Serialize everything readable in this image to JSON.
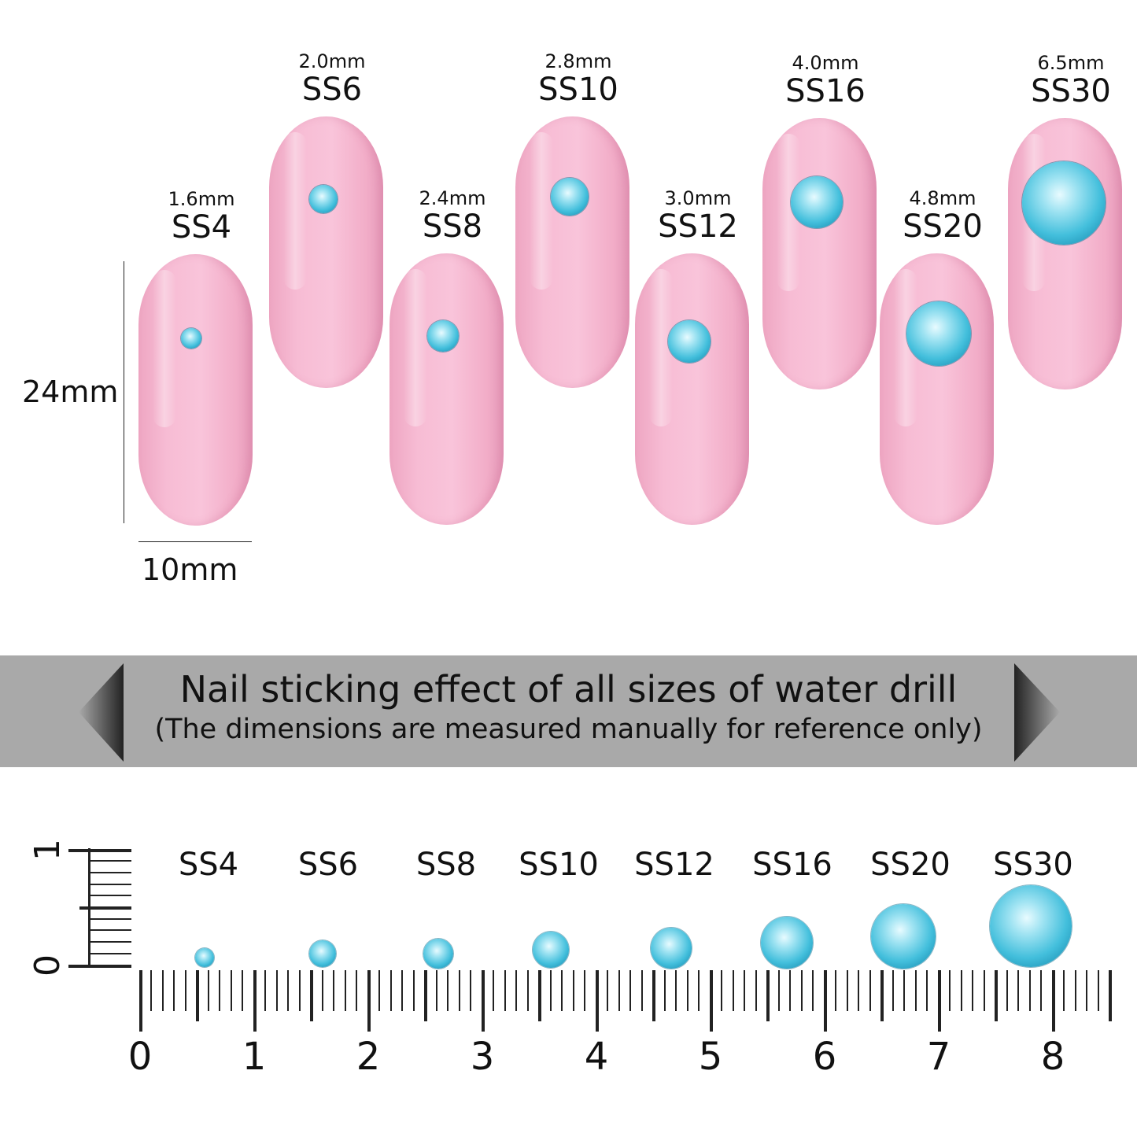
{
  "sizes": [
    {
      "name": "SS4",
      "mm": "1.6mm"
    },
    {
      "name": "SS6",
      "mm": "2.0mm"
    },
    {
      "name": "SS8",
      "mm": "2.4mm"
    },
    {
      "name": "SS10",
      "mm": "2.8mm"
    },
    {
      "name": "SS12",
      "mm": "3.0mm"
    },
    {
      "name": "SS16",
      "mm": "4.0mm"
    },
    {
      "name": "SS20",
      "mm": "4.8mm"
    },
    {
      "name": "SS30",
      "mm": "6.5mm"
    }
  ],
  "nail_length": "24mm",
  "nail_width": "10mm",
  "banner": {
    "title": "Nail sticking effect of all sizes of water drill",
    "subtitle": "(The dimensions are measured manually for reference only)"
  },
  "ruler": {
    "labels": [
      "0",
      "1",
      "2",
      "3",
      "4",
      "5",
      "6",
      "7",
      "8"
    ],
    "vertical_labels": [
      "0",
      "1"
    ]
  },
  "colors": {
    "nail": "#f7bcd4",
    "gem": "#43bfdc",
    "banner": "#a9a9a9"
  }
}
